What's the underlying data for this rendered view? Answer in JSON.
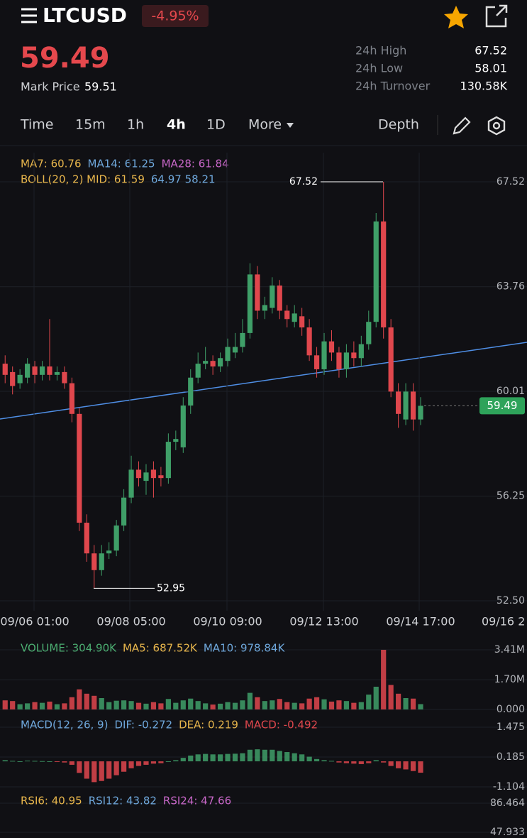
{
  "header": {
    "symbol": "LTCUSD",
    "change": "-4.95%",
    "price": "59.49",
    "mark_label": "Mark Price",
    "mark_price": "59.51",
    "stats": [
      {
        "label": "24h High",
        "value": "67.52"
      },
      {
        "label": "24h Low",
        "value": "58.01"
      },
      {
        "label": "24h Turnover",
        "value": "130.58K"
      }
    ]
  },
  "tabs": [
    "Time",
    "15m",
    "1h",
    "4h",
    "1D",
    "More",
    "Depth"
  ],
  "chart_data": [
    {
      "type": "candlestick",
      "legend": [
        [
          {
            "text": "MA7: 60.76",
            "color": "#e8b64c"
          },
          {
            "text": "MA14: 61.25",
            "color": "#6fa8dc"
          },
          {
            "text": "MA28: 61.84",
            "color": "#c867c8"
          }
        ],
        [
          {
            "text": "BOLL(20, 2) MID: 61.59",
            "color": "#e8b64c"
          },
          {
            "text": "64.97 58.21",
            "color": "#6fa8dc"
          }
        ]
      ],
      "xticks": [
        "09/06 01:00",
        "09/08 05:00",
        "09/10 09:00",
        "09/12 13:00",
        "09/14 17:00",
        "09/16 2"
      ],
      "ylim": [
        52.5,
        67.52
      ],
      "yticks": [
        67.52,
        63.76,
        60.01,
        56.25,
        {
          "value": 52.5,
          "label": "52.50"
        }
      ],
      "up_color": "#3f9f68",
      "down_color": "#e0474d",
      "open": [
        61.0,
        60.7,
        60.3,
        60.5,
        60.9,
        60.6,
        60.9,
        60.6,
        60.7,
        60.3,
        59.2,
        55.3,
        54.2,
        53.6,
        54.2,
        54.3,
        55.2,
        56.2,
        57.2,
        56.8,
        57.2,
        57.0,
        56.9,
        58.2,
        58.0,
        59.5,
        60.5,
        61.0,
        61.1,
        60.9,
        61.1,
        61.4,
        61.6,
        62.1,
        64.2,
        62.9,
        63.0,
        63.8,
        62.9,
        62.5,
        62.7,
        62.3,
        61.3,
        60.8,
        61.8,
        61.4,
        60.8,
        61.4,
        61.2,
        61.7,
        62.5,
        66.1,
        62.3,
        60.0,
        59.0,
        60.0,
        59.0
      ],
      "high": [
        61.3,
        60.9,
        60.8,
        61.2,
        61.1,
        61.1,
        62.6,
        60.9,
        60.9,
        60.5,
        59.4,
        55.6,
        54.5,
        54.5,
        54.6,
        55.4,
        56.5,
        57.7,
        57.5,
        57.4,
        57.5,
        57.3,
        58.5,
        58.6,
        59.8,
        60.8,
        61.4,
        61.6,
        61.3,
        61.4,
        61.9,
        62.1,
        62.6,
        64.6,
        64.5,
        63.4,
        64.1,
        64.0,
        63.1,
        63.1,
        63.0,
        62.6,
        61.6,
        62.1,
        62.2,
        61.6,
        61.7,
        61.8,
        62.0,
        62.9,
        66.4,
        67.52,
        62.6,
        60.3,
        60.3,
        60.3,
        59.8
      ],
      "low": [
        60.3,
        59.9,
        60.1,
        60.3,
        60.3,
        60.4,
        60.4,
        60.4,
        60.1,
        58.9,
        55.0,
        53.9,
        52.95,
        53.4,
        54.0,
        54.1,
        55.0,
        56.0,
        56.6,
        56.3,
        56.2,
        56.6,
        56.7,
        57.9,
        57.8,
        59.2,
        60.3,
        60.8,
        60.6,
        60.7,
        60.9,
        61.2,
        61.4,
        61.9,
        62.6,
        62.6,
        62.8,
        62.6,
        62.3,
        62.3,
        62.0,
        61.1,
        60.5,
        60.6,
        61.1,
        60.5,
        60.5,
        60.9,
        60.9,
        61.5,
        62.3,
        61.9,
        59.8,
        58.7,
        58.8,
        58.6,
        58.8
      ],
      "close": [
        60.6,
        60.2,
        60.6,
        61.0,
        60.6,
        60.9,
        60.6,
        60.7,
        60.3,
        59.2,
        55.3,
        54.2,
        53.6,
        54.2,
        54.3,
        55.2,
        56.2,
        57.2,
        56.9,
        57.1,
        56.9,
        56.9,
        58.2,
        58.3,
        59.5,
        60.5,
        61.0,
        61.1,
        60.9,
        61.2,
        61.6,
        61.6,
        62.1,
        64.2,
        62.9,
        63.1,
        63.8,
        62.9,
        62.6,
        62.8,
        62.3,
        61.3,
        60.8,
        61.8,
        61.4,
        60.8,
        61.4,
        61.2,
        61.7,
        62.5,
        66.1,
        62.3,
        60.0,
        59.2,
        60.0,
        59.0,
        59.49
      ],
      "high_marker": 67.52,
      "low_marker": 52.95,
      "last_price": 59.49
    },
    {
      "type": "bar",
      "legend": [
        [
          {
            "text": "VOLUME: 304.90K",
            "color": "#4caf72"
          },
          {
            "text": "MA5: 687.52K",
            "color": "#e8b64c"
          },
          {
            "text": "MA10: 978.84K",
            "color": "#6fa8dc"
          }
        ]
      ],
      "ylim": [
        0,
        3410
      ],
      "yticks": [
        {
          "value": 3410,
          "label": "3.41M"
        },
        {
          "value": 1700,
          "label": "1.70M"
        },
        {
          "value": 0,
          "label": "0.000"
        }
      ],
      "values": [
        520,
        480,
        300,
        350,
        420,
        380,
        450,
        300,
        350,
        700,
        1150,
        900,
        780,
        650,
        420,
        500,
        520,
        480,
        380,
        330,
        420,
        350,
        600,
        380,
        520,
        620,
        480,
        350,
        280,
        330,
        420,
        380,
        520,
        950,
        700,
        480,
        520,
        600,
        420,
        380,
        350,
        620,
        700,
        580,
        450,
        520,
        480,
        380,
        420,
        850,
        1300,
        3410,
        1400,
        900,
        650,
        620,
        304.9
      ]
    },
    {
      "type": "bar",
      "legend": [
        [
          {
            "text": "MACD(12, 26, 9)",
            "color": "#6fa8dc"
          },
          {
            "text": "DIF: -0.272",
            "color": "#6fa8dc"
          },
          {
            "text": "DEA: 0.219",
            "color": "#e8b64c"
          },
          {
            "text": "MACD: -0.492",
            "color": "#e0474d"
          }
        ]
      ],
      "ylim": [
        -1.104,
        1.475
      ],
      "yticks": [
        1.475,
        0.185,
        -1.104
      ],
      "values": [
        0.05,
        0.02,
        0.0,
        0.03,
        0.02,
        0.01,
        0.0,
        -0.02,
        -0.05,
        -0.15,
        -0.5,
        -0.75,
        -0.9,
        -0.85,
        -0.75,
        -0.6,
        -0.45,
        -0.3,
        -0.2,
        -0.15,
        -0.1,
        -0.08,
        0.0,
        0.05,
        0.15,
        0.25,
        0.3,
        0.32,
        0.3,
        0.3,
        0.32,
        0.33,
        0.35,
        0.5,
        0.52,
        0.5,
        0.5,
        0.45,
        0.4,
        0.35,
        0.3,
        0.2,
        0.1,
        0.05,
        0.02,
        -0.05,
        -0.08,
        -0.1,
        -0.12,
        -0.08,
        0.05,
        -0.05,
        -0.2,
        -0.3,
        -0.35,
        -0.42,
        -0.492
      ]
    },
    {
      "type": "line",
      "legend": [
        [
          {
            "text": "RSI6: 40.95",
            "color": "#e8b64c"
          },
          {
            "text": "RSI12: 43.82",
            "color": "#6fa8dc"
          },
          {
            "text": "RSI24: 47.66",
            "color": "#c867c8"
          }
        ]
      ],
      "ylim": [
        47.933,
        86.464
      ],
      "yticks": [
        86.464,
        47.933
      ]
    }
  ]
}
